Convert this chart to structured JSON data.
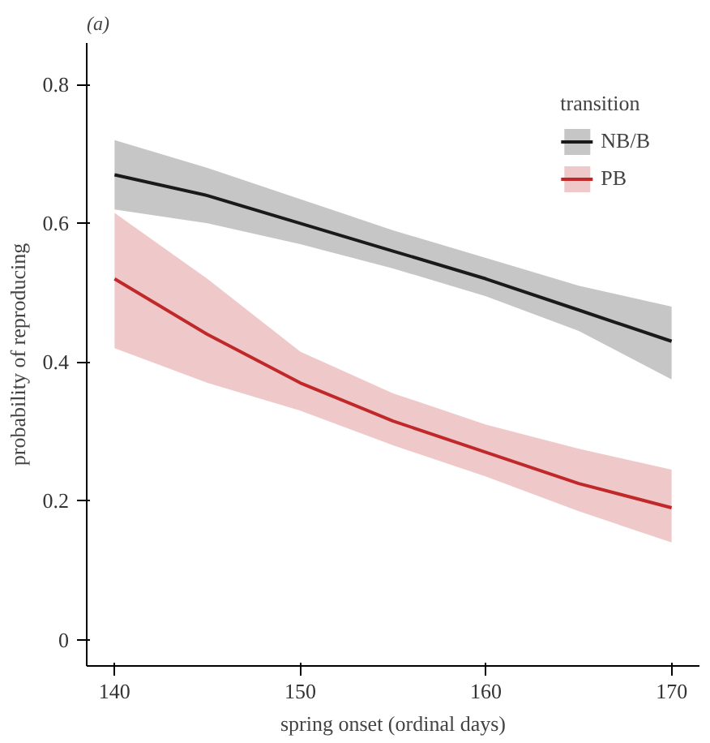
{
  "chart_data": {
    "type": "line",
    "title": "(a)",
    "xlabel": "spring onset (ordinal days)",
    "ylabel": "probability of reproducing",
    "legend_title": "transition",
    "legend": "top right",
    "grid": false,
    "marker": "none",
    "line_style": "solid",
    "xlim": [
      138.5,
      171.5
    ],
    "ylim": [
      -0.038,
      0.86
    ],
    "xticks": [
      140,
      150,
      160,
      170
    ],
    "yticks": [
      0,
      0.2,
      0.4,
      0.6,
      0.8
    ],
    "series": [
      {
        "name": "NB/B",
        "color": "#1a1a1a",
        "x": [
          140,
          145,
          150,
          155,
          160,
          165,
          170
        ],
        "values": [
          0.67,
          0.64,
          0.6,
          0.56,
          0.52,
          0.475,
          0.43
        ],
        "lower": [
          0.62,
          0.6,
          0.57,
          0.535,
          0.495,
          0.445,
          0.375
        ],
        "upper": [
          0.72,
          0.68,
          0.635,
          0.59,
          0.55,
          0.51,
          0.48
        ]
      },
      {
        "name": "PB",
        "color": "#c0282a",
        "x": [
          140,
          145,
          150,
          155,
          160,
          165,
          170
        ],
        "values": [
          0.52,
          0.44,
          0.37,
          0.315,
          0.27,
          0.225,
          0.19
        ],
        "lower": [
          0.42,
          0.37,
          0.33,
          0.28,
          0.235,
          0.185,
          0.14
        ],
        "upper": [
          0.615,
          0.52,
          0.415,
          0.355,
          0.31,
          0.275,
          0.245
        ]
      }
    ]
  }
}
